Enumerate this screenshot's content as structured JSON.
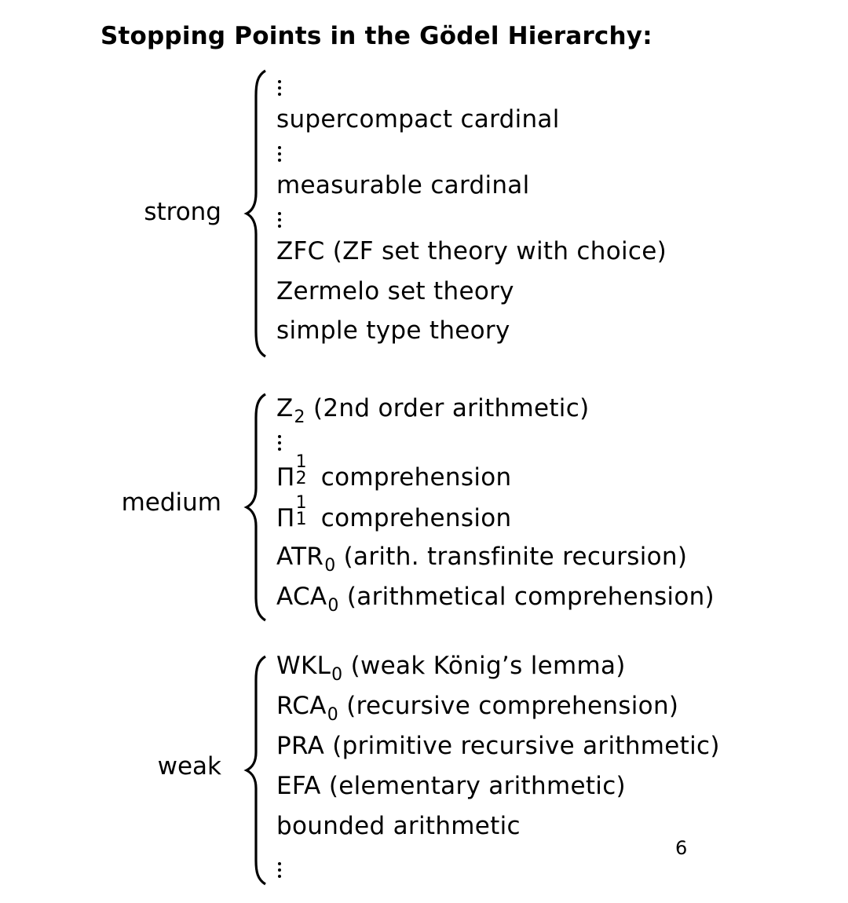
{
  "title": "Stopping Points in the Gödel Hierarchy:",
  "groups": {
    "strong": {
      "label": "strong",
      "items": [
        "⋮",
        "supercompact cardinal",
        "⋮",
        "measurable cardinal",
        "⋮",
        "ZFC (ZF set theory with choice)",
        "Zermelo set theory",
        "simple type theory"
      ]
    },
    "medium": {
      "label": "medium",
      "items": [
        {
          "base": "Z",
          "sub": "2",
          "rest": " (2nd order arithmetic)"
        },
        "⋮",
        {
          "base": "Π",
          "sup": "1",
          "sub": "2",
          "rest": " comprehension"
        },
        {
          "base": "Π",
          "sup": "1",
          "sub": "1",
          "rest": " comprehension"
        },
        {
          "base": "ATR",
          "sub": "0",
          "rest": " (arith. transfinite recursion)"
        },
        {
          "base": "ACA",
          "sub": "0",
          "rest": " (arithmetical comprehension)"
        }
      ]
    },
    "weak": {
      "label": "weak",
      "items": [
        {
          "base": "WKL",
          "sub": "0",
          "rest": " (weak König’s lemma)"
        },
        {
          "base": "RCA",
          "sub": "0",
          "rest": " (recursive comprehension)"
        },
        "PRA (primitive recursive arithmetic)",
        "EFA (elementary arithmetic)",
        "bounded arithmetic",
        "⋮"
      ]
    }
  },
  "page_number": "6"
}
